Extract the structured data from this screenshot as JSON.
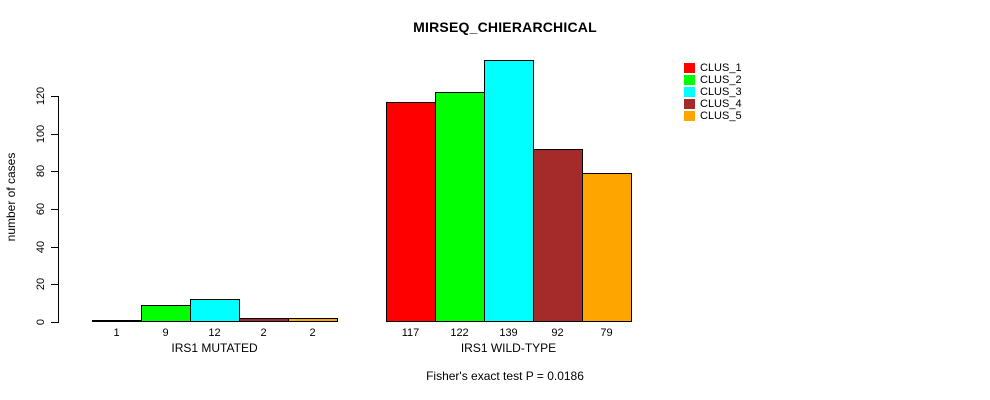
{
  "chart_data": {
    "type": "bar",
    "title": "MIRSEQ_CHIERARCHICAL",
    "subtitle": "Fisher's exact test P = 0.0186",
    "ylabel": "number of cases",
    "xlabel": "",
    "ylim": [
      0,
      120
    ],
    "yticks": [
      0,
      20,
      40,
      60,
      80,
      100,
      120
    ],
    "categories": [
      "IRS1 MUTATED",
      "IRS1 WILD-TYPE"
    ],
    "series": [
      {
        "name": "CLUS_1",
        "color": "#FF0000",
        "values": [
          1,
          117
        ]
      },
      {
        "name": "CLUS_2",
        "color": "#00FF00",
        "values": [
          9,
          122
        ]
      },
      {
        "name": "CLUS_3",
        "color": "#00FFFF",
        "values": [
          12,
          139
        ]
      },
      {
        "name": "CLUS_4",
        "color": "#A52A2A",
        "values": [
          2,
          92
        ]
      },
      {
        "name": "CLUS_5",
        "color": "#FFA500",
        "values": [
          2,
          79
        ]
      }
    ],
    "bar_value_labels": [
      [
        "1",
        "9",
        "12",
        "2",
        "2"
      ],
      [
        "117",
        "122",
        "139",
        "92",
        "79"
      ]
    ],
    "legend": {
      "position": "top-right",
      "entries": [
        "CLUS_1",
        "CLUS_2",
        "CLUS_3",
        "CLUS_4",
        "CLUS_5"
      ]
    },
    "grid": false,
    "axis_color": "#000000",
    "background_color": "#FFFFFF"
  }
}
